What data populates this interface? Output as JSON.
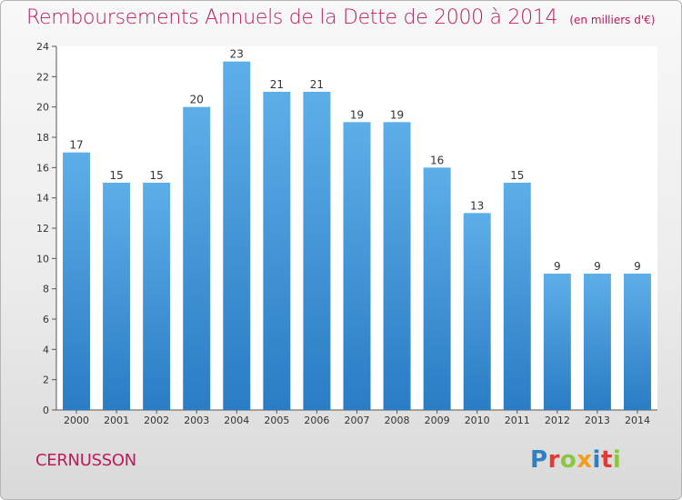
{
  "chart_data": {
    "type": "bar",
    "title": "Remboursements Annuels de la Dette de 2000 à 2014",
    "subtitle": "(en milliers d'€)",
    "categories": [
      "2000",
      "2001",
      "2002",
      "2003",
      "2004",
      "2005",
      "2006",
      "2007",
      "2008",
      "2009",
      "2010",
      "2011",
      "2012",
      "2013",
      "2014"
    ],
    "values": [
      17,
      15,
      15,
      20,
      23,
      21,
      21,
      19,
      19,
      16,
      13,
      15,
      9,
      9,
      9
    ],
    "ylim": [
      0,
      24
    ],
    "yticks": [
      0,
      2,
      4,
      6,
      8,
      10,
      12,
      14,
      16,
      18,
      20,
      22,
      24
    ],
    "xlabel": "",
    "ylabel": "",
    "grid": false,
    "data_labels": true,
    "colors": {
      "bar_top": "#5daee8",
      "bar_bottom": "#2a7cc4",
      "title": "#c2185b"
    }
  },
  "footer": {
    "city": "CERNUSSON",
    "logo_letters": [
      {
        "ch": "P",
        "color": "#2f80c3"
      },
      {
        "ch": "r",
        "color": "#e53935"
      },
      {
        "ch": "o",
        "color": "#8cc63f"
      },
      {
        "ch": "x",
        "color": "#f59c1a"
      },
      {
        "ch": "i",
        "color": "#2f80c3"
      },
      {
        "ch": "t",
        "color": "#e53935"
      },
      {
        "ch": "i",
        "color": "#8cc63f"
      }
    ]
  }
}
